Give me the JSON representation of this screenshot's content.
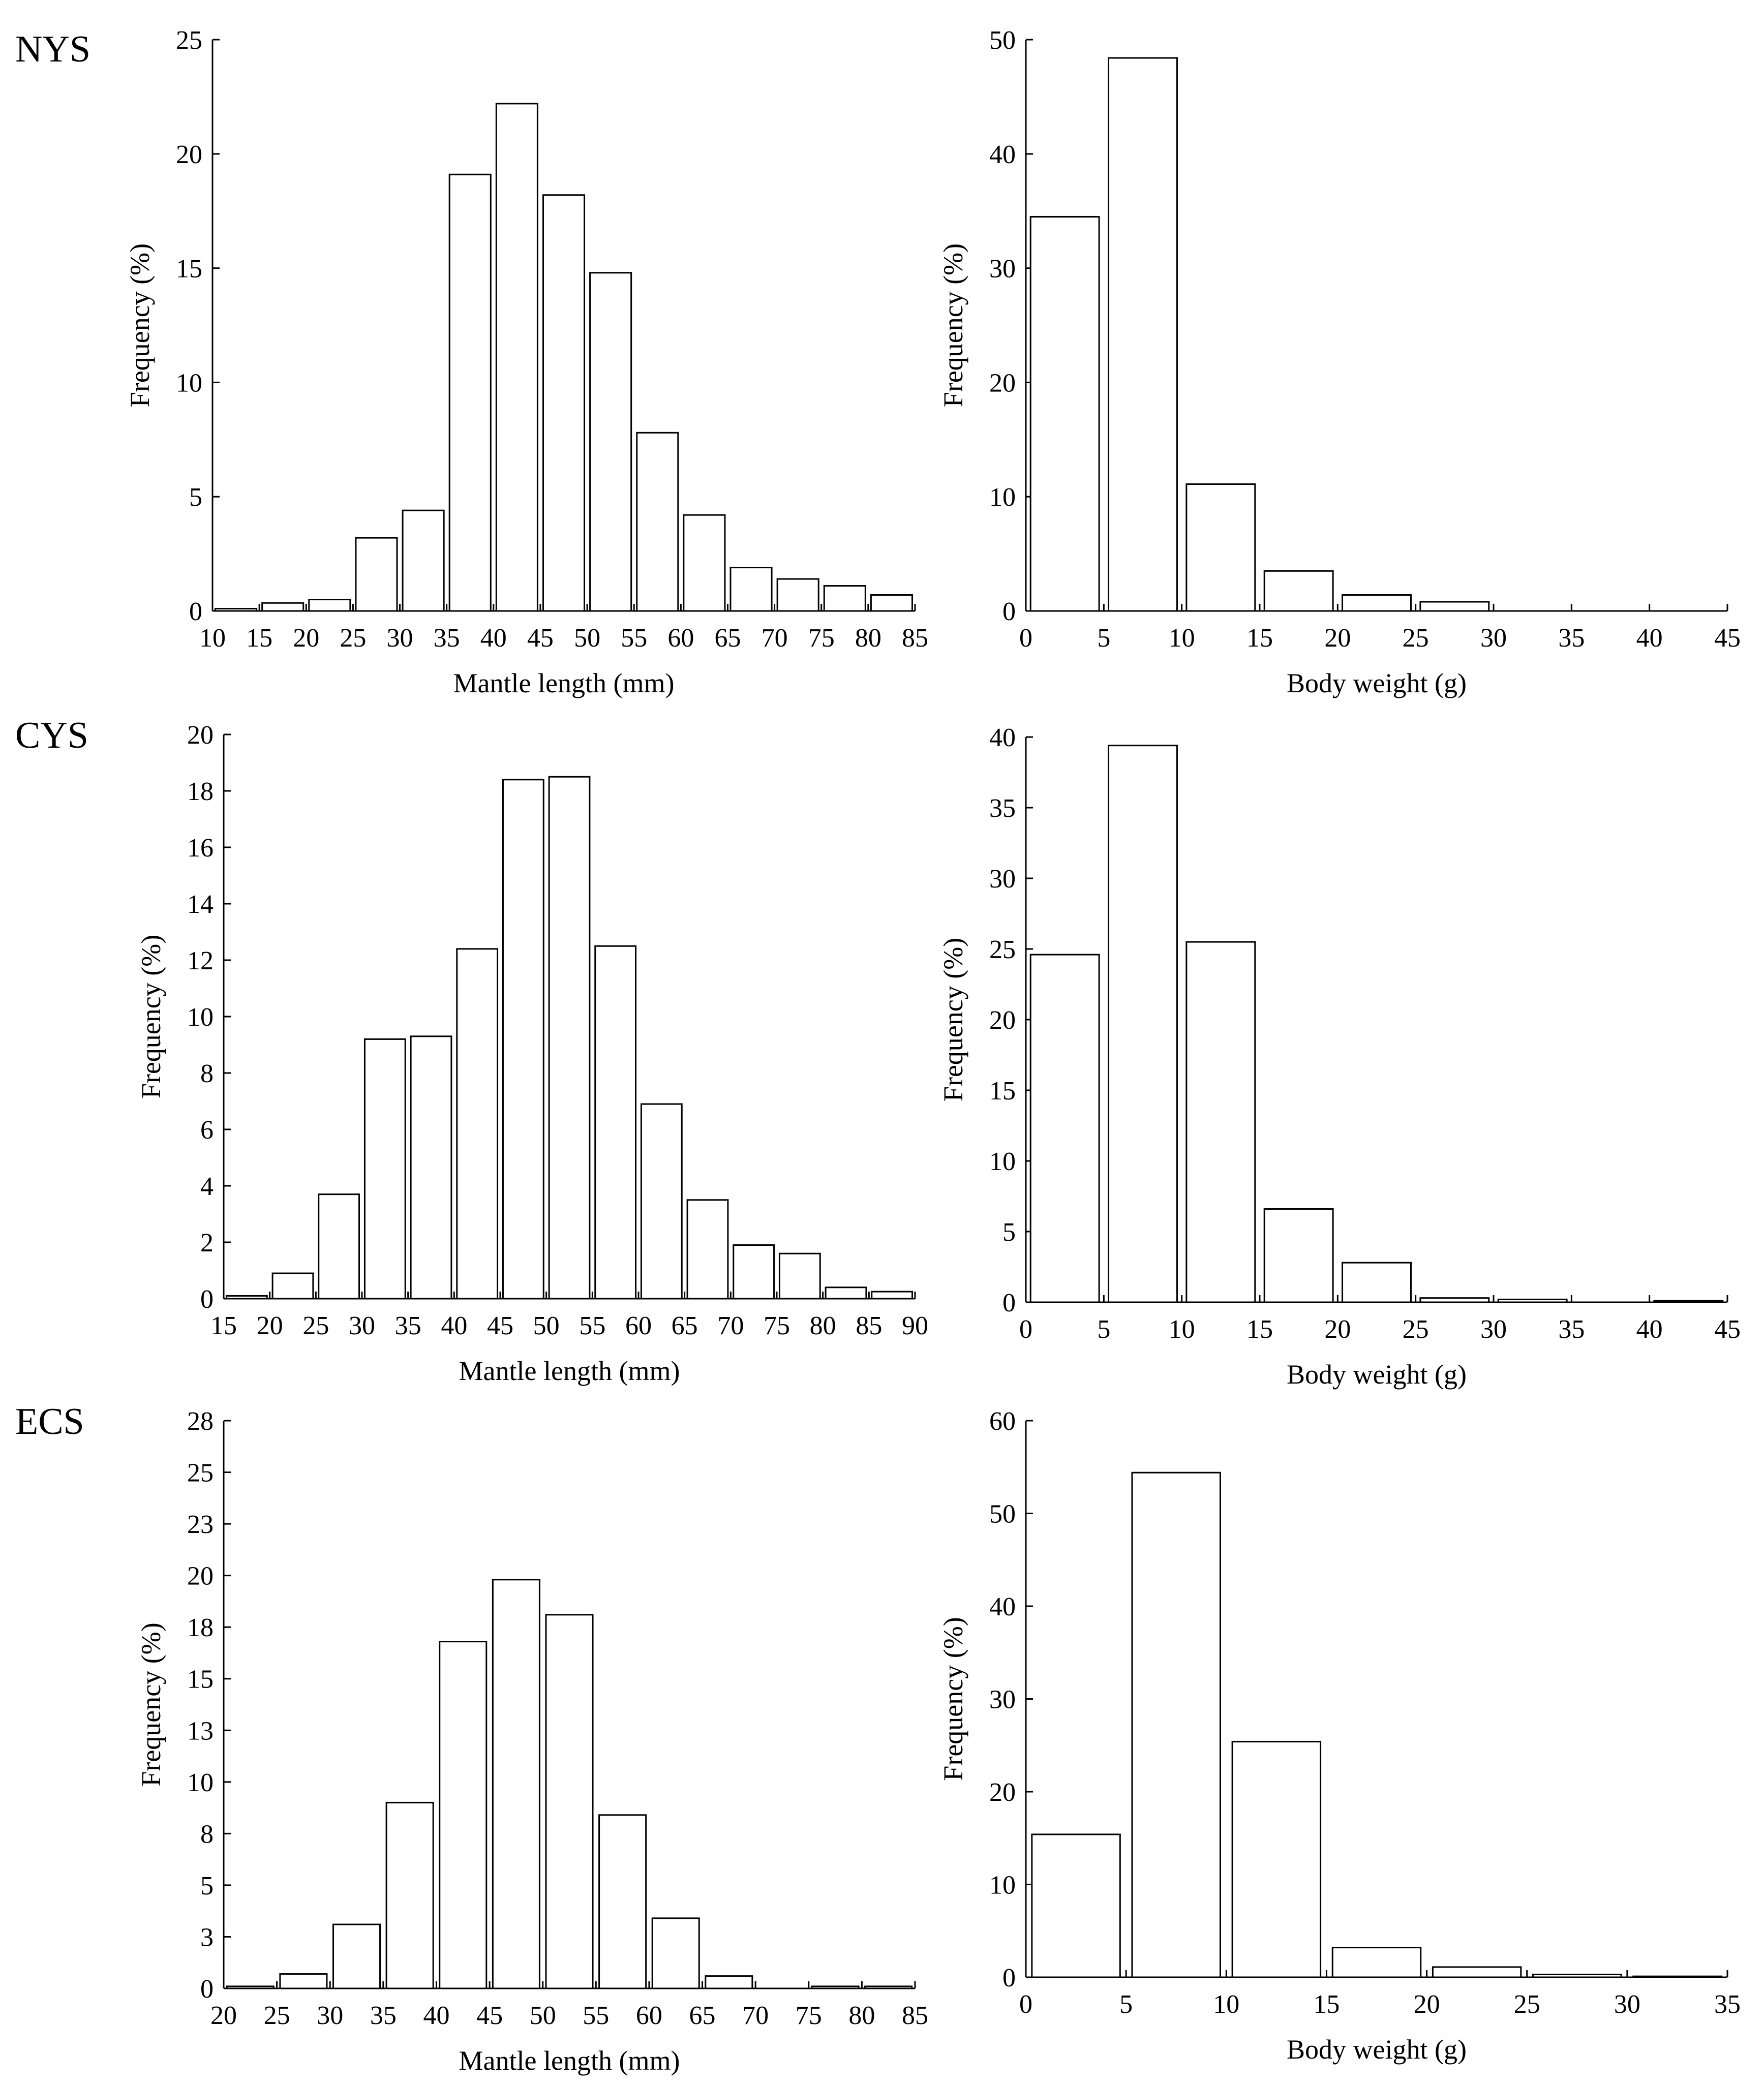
{
  "figure": {
    "panel_labels": [
      "NYS",
      "CYS",
      "ECS"
    ]
  },
  "chart_data": [
    {
      "id": "nys-mantle",
      "type": "bar",
      "region": "NYS",
      "xlabel": "Mantle length (mm)",
      "ylabel": "Frequency (%)",
      "xlim": [
        10,
        85
      ],
      "ylim": [
        0,
        25
      ],
      "xticks": [
        10,
        15,
        20,
        25,
        30,
        35,
        40,
        45,
        50,
        55,
        60,
        65,
        70,
        75,
        80,
        85
      ],
      "yticks": [
        0,
        5,
        10,
        15,
        20,
        25
      ],
      "bin_width": 5,
      "bins": [
        10,
        15,
        20,
        25,
        30,
        35,
        40,
        45,
        50,
        55,
        60,
        65,
        70,
        75,
        80
      ],
      "values": [
        0.1,
        0.35,
        0.5,
        3.2,
        4.4,
        19.1,
        22.2,
        18.2,
        14.8,
        7.8,
        4.2,
        1.9,
        1.4,
        1.1,
        0.7
      ]
    },
    {
      "id": "nys-weight",
      "type": "bar",
      "region": "NYS",
      "xlabel": "Body weight (g)",
      "ylabel": "Frequency (%)",
      "xlim": [
        0,
        45
      ],
      "ylim": [
        0,
        50
      ],
      "xticks": [
        0,
        5,
        10,
        15,
        20,
        25,
        30,
        35,
        40,
        45
      ],
      "yticks": [
        0,
        10,
        20,
        30,
        40,
        50
      ],
      "bin_width": 5,
      "bins": [
        0,
        5,
        10,
        15,
        20,
        25
      ],
      "values": [
        34.5,
        48.4,
        11.1,
        3.5,
        1.4,
        0.8
      ]
    },
    {
      "id": "cys-mantle",
      "type": "bar",
      "region": "CYS",
      "xlabel": "Mantle length (mm)",
      "ylabel": "Frequency (%)",
      "xlim": [
        15,
        90
      ],
      "ylim": [
        0,
        20
      ],
      "xticks": [
        15,
        20,
        25,
        30,
        35,
        40,
        45,
        50,
        55,
        60,
        65,
        70,
        75,
        80,
        85,
        90
      ],
      "yticks": [
        0,
        2,
        4,
        6,
        8,
        10,
        12,
        14,
        16,
        18,
        20
      ],
      "bin_width": 5,
      "bins": [
        15,
        20,
        25,
        30,
        35,
        40,
        45,
        50,
        55,
        60,
        65,
        70,
        75,
        80,
        85
      ],
      "values": [
        0.1,
        0.9,
        3.7,
        9.2,
        9.3,
        12.4,
        18.4,
        18.5,
        12.5,
        6.9,
        3.5,
        1.9,
        1.6,
        0.4,
        0.25
      ]
    },
    {
      "id": "cys-weight",
      "type": "bar",
      "region": "CYS",
      "xlabel": "Body weight (g)",
      "ylabel": "Frequency (%)",
      "xlim": [
        0,
        45
      ],
      "ylim": [
        0,
        40
      ],
      "xticks": [
        0,
        5,
        10,
        15,
        20,
        25,
        30,
        35,
        40,
        45
      ],
      "yticks": [
        0,
        5,
        10,
        15,
        20,
        25,
        30,
        35,
        40
      ],
      "bin_width": 5,
      "bins": [
        0,
        5,
        10,
        15,
        20,
        25,
        30,
        35,
        40
      ],
      "values": [
        24.6,
        39.4,
        25.5,
        6.6,
        2.8,
        0.3,
        0.2,
        0,
        0.1
      ]
    },
    {
      "id": "ecs-mantle",
      "type": "bar",
      "region": "ECS",
      "xlabel": "Mantle length (mm)",
      "ylabel": "Frequency (%)",
      "xlim": [
        20,
        85
      ],
      "ylim": [
        0,
        27.5
      ],
      "xticks": [
        20,
        25,
        30,
        35,
        40,
        45,
        50,
        55,
        60,
        65,
        70,
        75,
        80,
        85
      ],
      "yticks": [
        0,
        3,
        5,
        8,
        10,
        13,
        15,
        18,
        20,
        23,
        25,
        28
      ],
      "ytick_values": [
        0,
        2.5,
        5,
        7.5,
        10,
        12.5,
        15,
        17.5,
        20,
        22.5,
        25,
        27.5
      ],
      "bin_width": 5,
      "bins": [
        20,
        25,
        30,
        35,
        40,
        45,
        50,
        55,
        60,
        65,
        70,
        75,
        80
      ],
      "values": [
        0.1,
        0.7,
        3.1,
        9.0,
        16.8,
        19.8,
        18.1,
        8.4,
        3.4,
        0.6,
        0,
        0.1,
        0.1
      ]
    },
    {
      "id": "ecs-weight",
      "type": "bar",
      "region": "ECS",
      "xlabel": "Body weight (g)",
      "ylabel": "Frequency (%)",
      "xlim": [
        0,
        35
      ],
      "ylim": [
        0,
        60
      ],
      "xticks": [
        0,
        5,
        10,
        15,
        20,
        25,
        30,
        35
      ],
      "yticks": [
        0,
        10,
        20,
        30,
        40,
        50,
        60
      ],
      "bin_width": 5,
      "bins": [
        0,
        5,
        10,
        15,
        20,
        25,
        30
      ],
      "values": [
        15.4,
        54.4,
        25.4,
        3.2,
        1.1,
        0.3,
        0.1
      ]
    }
  ]
}
